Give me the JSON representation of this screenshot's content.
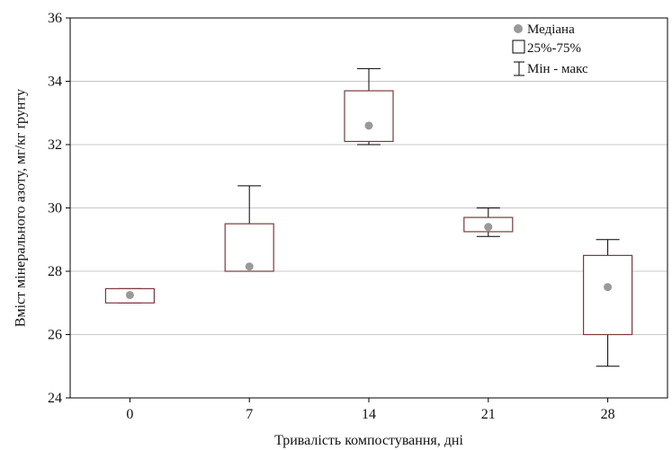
{
  "chart_data": {
    "type": "box",
    "xlabel": "Тривалість компостування, дні",
    "ylabel": "Вміст мінерального азоту, мг/кг ґрунту",
    "categories": [
      "0",
      "7",
      "14",
      "21",
      "28"
    ],
    "ylim": [
      24,
      36
    ],
    "yticks": [
      "24",
      "26",
      "28",
      "30",
      "32",
      "34",
      "36"
    ],
    "grid": "horizontal",
    "legend_position": "top-right",
    "legend": [
      {
        "label": "Медіана",
        "symbol": "point"
      },
      {
        "label": "25%-75%",
        "symbol": "box"
      },
      {
        "label": "Мін - макс",
        "symbol": "whisker"
      }
    ],
    "boxes": [
      {
        "category": "0",
        "min": 27.0,
        "q1": 27.0,
        "median": 27.25,
        "q3": 27.45,
        "max": 27.45
      },
      {
        "category": "7",
        "min": 28.0,
        "q1": 28.0,
        "median": 28.15,
        "q3": 29.5,
        "max": 30.7
      },
      {
        "category": "14",
        "min": 32.0,
        "q1": 32.1,
        "median": 32.6,
        "q3": 33.7,
        "max": 34.4
      },
      {
        "category": "21",
        "min": 29.1,
        "q1": 29.25,
        "median": 29.4,
        "q3": 29.7,
        "max": 30.0
      },
      {
        "category": "28",
        "min": 25.0,
        "q1": 26.0,
        "median": 27.5,
        "q3": 28.5,
        "max": 29.0
      }
    ],
    "colors": {
      "box_stroke": "#7a3b3b",
      "median": "#999999",
      "grid": "#c8c8c8",
      "axis": "#000000"
    }
  }
}
